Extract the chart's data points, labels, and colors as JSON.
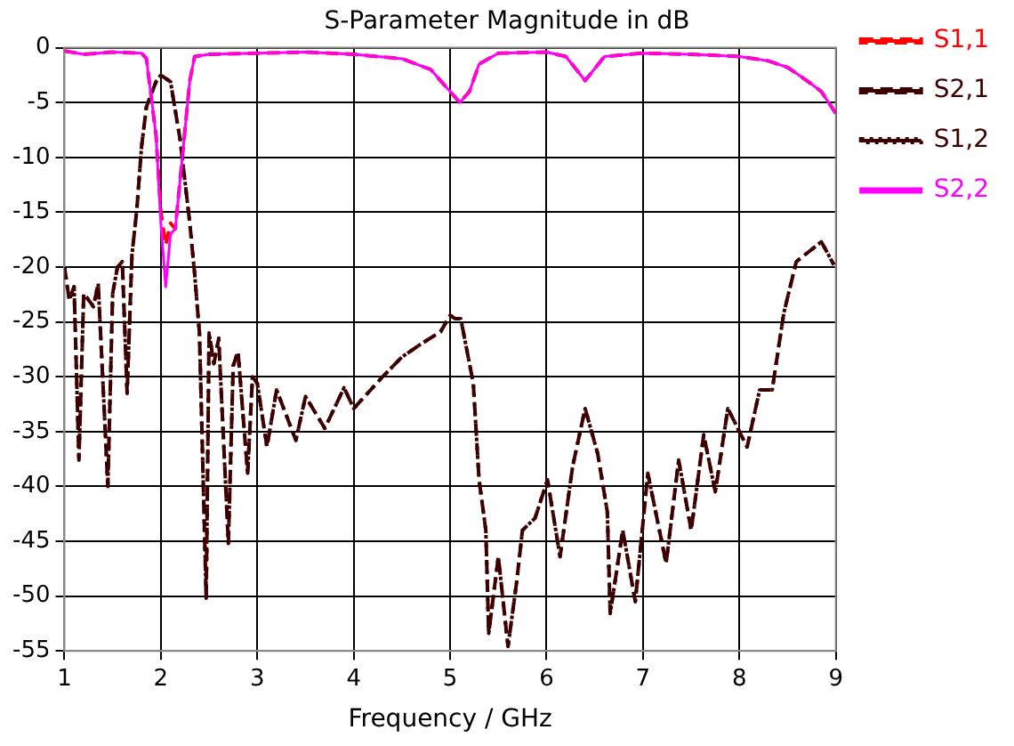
{
  "chart_data": {
    "type": "line",
    "title": "S-Parameter Magnitude in dB",
    "xlabel": "Frequency / GHz",
    "xlim": [
      1,
      9
    ],
    "xticks": [
      1,
      2,
      3,
      4,
      5,
      6,
      7,
      8,
      9
    ],
    "ylim": [
      -55,
      0
    ],
    "yticks": [
      0,
      -5,
      -10,
      -15,
      -20,
      -25,
      -30,
      -35,
      -40,
      -45,
      -50,
      -55
    ],
    "grid": true,
    "legend": "right",
    "marker": "none",
    "series": [
      {
        "name": "S1,1",
        "color": "#ff0000",
        "line_style": "dashed",
        "x": [
          1,
          1.2,
          1.5,
          1.8,
          1.85,
          1.95,
          2,
          2.05,
          2.1,
          2.15,
          2.2,
          2.3,
          2.35,
          2.5,
          3,
          3.5,
          4,
          4.5,
          4.8,
          5,
          5.1,
          5.2,
          5.3,
          5.5,
          6,
          6.2,
          6.4,
          6.6,
          7,
          7.5,
          8,
          8.3,
          8.5,
          8.7,
          8.85,
          9
        ],
        "values": [
          -0.3,
          -0.6,
          -0.4,
          -0.5,
          -1,
          -8,
          -15,
          -18,
          -16,
          -16.5,
          -12,
          -3,
          -0.8,
          -0.6,
          -0.5,
          -0.4,
          -0.6,
          -1,
          -2,
          -4,
          -5,
          -4,
          -1.5,
          -0.5,
          -0.4,
          -0.8,
          -3,
          -0.8,
          -0.5,
          -0.6,
          -0.8,
          -1.2,
          -1.8,
          -3,
          -4,
          -6
        ]
      },
      {
        "name": "S2,1",
        "color": "#3d0000",
        "line_style": "dashed",
        "x": [
          1,
          1.05,
          1.1,
          1.15,
          1.2,
          1.3,
          1.35,
          1.45,
          1.5,
          1.55,
          1.6,
          1.65,
          1.7,
          1.75,
          1.8,
          1.85,
          1.95,
          2,
          2.1,
          2.2,
          2.3,
          2.35,
          2.4,
          2.47,
          2.5,
          2.55,
          2.6,
          2.7,
          2.75,
          2.8,
          2.9,
          2.95,
          3,
          3.1,
          3.2,
          3.4,
          3.5,
          3.7,
          3.9,
          4,
          4.3,
          4.5,
          4.7,
          4.9,
          5,
          5.05,
          5.11,
          5.24,
          5.3,
          5.37,
          5.4,
          5.5,
          5.6,
          5.69,
          5.75,
          5.88,
          6.01,
          6.14,
          6.27,
          6.4,
          6.53,
          6.63,
          6.66,
          6.79,
          6.92,
          7.05,
          7.17,
          7.24,
          7.37,
          7.5,
          7.63,
          7.75,
          7.88,
          8.08,
          8.21,
          8.34,
          8.46,
          8.59,
          8.72,
          8.85,
          8.98
        ],
        "values": [
          -20,
          -23,
          -21.8,
          -37.6,
          -22.4,
          -23.6,
          -21.5,
          -40,
          -22.4,
          -20,
          -19.5,
          -31.5,
          -18.9,
          -14.8,
          -9,
          -5.4,
          -3.1,
          -2.5,
          -3.1,
          -8.4,
          -16,
          -20.6,
          -26,
          -50.2,
          -26,
          -28.8,
          -26.5,
          -45.2,
          -29,
          -27.7,
          -38.8,
          -30,
          -30.6,
          -36.4,
          -31.2,
          -35.8,
          -31.8,
          -34.7,
          -31,
          -32.9,
          -30,
          -28.2,
          -27,
          -25.9,
          -24.4,
          -24.7,
          -24.7,
          -30.6,
          -39.4,
          -44,
          -53.4,
          -46.4,
          -54.6,
          -48.7,
          -44,
          -42.9,
          -39.4,
          -46.4,
          -38.2,
          -32.9,
          -37,
          -42.3,
          -51.6,
          -44,
          -50.5,
          -38.8,
          -44,
          -47,
          -37.6,
          -44,
          -35.3,
          -40.5,
          -32.9,
          -36.4,
          -31.2,
          -31.2,
          -24.2,
          -19.5,
          -18.6,
          -17.7,
          -19.8
        ]
      },
      {
        "name": "S1,2",
        "color": "#3d0000",
        "line_style": "dotted",
        "x": [
          1,
          1.05,
          1.1,
          1.15,
          1.2,
          1.3,
          1.35,
          1.45,
          1.5,
          1.55,
          1.6,
          1.65,
          1.7,
          1.75,
          1.8,
          1.85,
          1.95,
          2,
          2.1,
          2.2,
          2.3,
          2.35,
          2.4,
          2.47,
          2.5,
          2.55,
          2.6,
          2.7,
          2.75,
          2.8,
          2.9,
          2.95,
          3,
          3.1,
          3.2,
          3.4,
          3.5,
          3.7,
          3.9,
          4,
          4.3,
          4.5,
          4.7,
          4.9,
          5,
          5.05,
          5.11,
          5.24,
          5.3,
          5.37,
          5.4,
          5.5,
          5.6,
          5.69,
          5.75,
          5.88,
          6.01,
          6.14,
          6.27,
          6.4,
          6.53,
          6.63,
          6.66,
          6.79,
          6.92,
          7.05,
          7.17,
          7.24,
          7.37,
          7.5,
          7.63,
          7.75,
          7.88,
          8.08,
          8.21,
          8.34,
          8.46,
          8.59,
          8.72,
          8.85,
          8.98
        ],
        "values": [
          -20,
          -23,
          -21.8,
          -37.6,
          -22.4,
          -23.6,
          -21.5,
          -40,
          -22.4,
          -20,
          -19.5,
          -31.5,
          -18.9,
          -14.8,
          -9,
          -5.4,
          -3.1,
          -2.5,
          -3.1,
          -8.4,
          -16,
          -20.6,
          -26,
          -50.2,
          -26,
          -28.8,
          -26.5,
          -45.2,
          -29,
          -27.7,
          -38.8,
          -30,
          -30.6,
          -36.4,
          -31.2,
          -35.8,
          -31.8,
          -34.7,
          -31,
          -32.9,
          -30,
          -28.2,
          -27,
          -25.9,
          -24.4,
          -24.7,
          -24.7,
          -30.6,
          -39.4,
          -44,
          -53.4,
          -46.4,
          -54.6,
          -48.7,
          -44,
          -42.9,
          -39.4,
          -46.4,
          -38.2,
          -32.9,
          -37,
          -42.3,
          -51.6,
          -44,
          -50.5,
          -38.8,
          -44,
          -47,
          -37.6,
          -44,
          -35.3,
          -40.5,
          -32.9,
          -36.4,
          -31.2,
          -31.2,
          -24.2,
          -19.5,
          -18.6,
          -17.7,
          -19.8
        ]
      },
      {
        "name": "S2,2",
        "color": "#ff00ff",
        "line_style": "solid",
        "x": [
          1,
          1.2,
          1.5,
          1.8,
          1.85,
          1.95,
          2,
          2.05,
          2.1,
          2.15,
          2.2,
          2.3,
          2.35,
          2.5,
          3,
          3.5,
          4,
          4.5,
          4.8,
          5,
          5.1,
          5.2,
          5.3,
          5.5,
          6,
          6.2,
          6.4,
          6.6,
          7,
          7.5,
          8,
          8.3,
          8.5,
          8.7,
          8.85,
          9
        ],
        "values": [
          -0.3,
          -0.6,
          -0.4,
          -0.5,
          -1,
          -8,
          -16,
          -21.8,
          -17,
          -16.5,
          -12,
          -3,
          -0.8,
          -0.6,
          -0.5,
          -0.4,
          -0.6,
          -1,
          -2,
          -4,
          -5,
          -4,
          -1.5,
          -0.5,
          -0.4,
          -0.8,
          -3,
          -0.8,
          -0.5,
          -0.6,
          -0.8,
          -1.2,
          -1.8,
          -3,
          -4,
          -6
        ]
      }
    ]
  }
}
